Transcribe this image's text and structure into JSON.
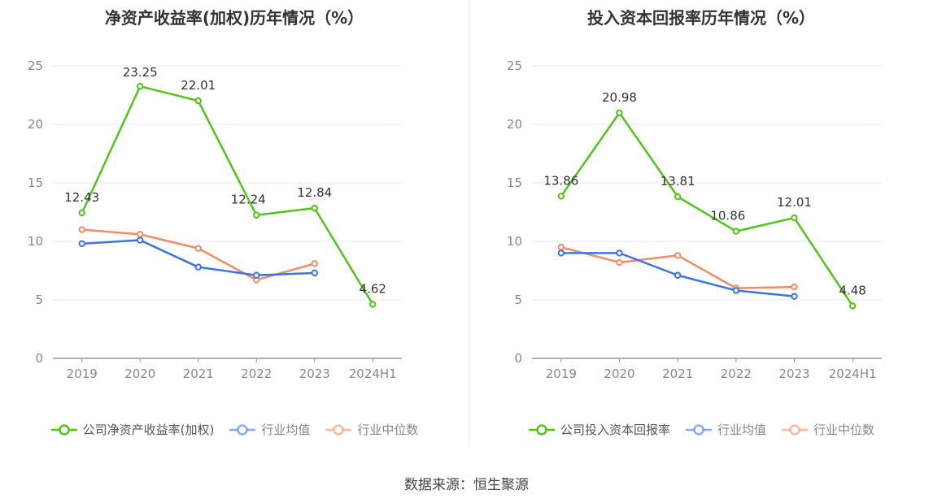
{
  "source": "数据来源：恒生聚源",
  "colors": {
    "company": "#52c41a",
    "avg": "#3d74e0",
    "median": "#f28c64",
    "grid": "#e6e9f5",
    "axis": "#999999",
    "tick": "#888888"
  },
  "chart_data": [
    {
      "type": "line",
      "title": "净资产收益率(加权)历年情况（%）",
      "categories": [
        "2019",
        "2020",
        "2021",
        "2022",
        "2023",
        "2024H1"
      ],
      "ylim": [
        0,
        25
      ],
      "yticks": [
        "0",
        "5",
        "10",
        "15",
        "20",
        "25"
      ],
      "grid": true,
      "legend_position": "bottom",
      "series": [
        {
          "name": "公司净资产收益率(加权)",
          "color": "#52c41a",
          "values": [
            12.43,
            23.25,
            22.01,
            12.24,
            12.84,
            4.62
          ],
          "labels": [
            "12.43",
            "23.25",
            "22.01",
            "12.24",
            "12.84",
            "4.62"
          ]
        },
        {
          "name": "行业均值",
          "color": "#3d74e0",
          "values": [
            9.8,
            10.1,
            7.8,
            7.1,
            7.3,
            null
          ]
        },
        {
          "name": "行业中位数",
          "color": "#f28c64",
          "values": [
            11.0,
            10.6,
            9.4,
            6.7,
            8.1,
            null
          ]
        }
      ]
    },
    {
      "type": "line",
      "title": "投入资本回报率历年情况（%）",
      "categories": [
        "2019",
        "2020",
        "2021",
        "2022",
        "2023",
        "2024H1"
      ],
      "ylim": [
        0,
        25
      ],
      "yticks": [
        "0",
        "5",
        "10",
        "15",
        "20",
        "25"
      ],
      "grid": true,
      "legend_position": "bottom",
      "series": [
        {
          "name": "公司投入资本回报率",
          "color": "#52c41a",
          "values": [
            13.86,
            20.98,
            13.81,
            10.86,
            12.01,
            4.48
          ],
          "labels": [
            "13.86",
            "20.98",
            "13.81",
            "10.86",
            "12.01",
            "4.48"
          ]
        },
        {
          "name": "行业均值",
          "color": "#3d74e0",
          "values": [
            9.0,
            9.0,
            7.1,
            5.8,
            5.3,
            null
          ]
        },
        {
          "name": "行业中位数",
          "color": "#f28c64",
          "values": [
            9.5,
            8.2,
            8.8,
            6.0,
            6.1,
            null
          ]
        }
      ]
    }
  ]
}
